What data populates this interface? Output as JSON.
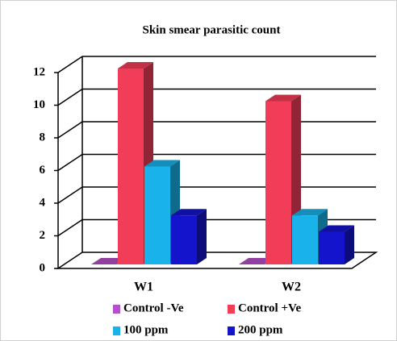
{
  "chart_data": {
    "type": "bar3d",
    "title": "Skin smear parasitic count",
    "categories": [
      "W1",
      "W2"
    ],
    "series": [
      {
        "name": "Control -Ve",
        "color": "#b550c8",
        "values": [
          0,
          0
        ]
      },
      {
        "name": "Control +Ve",
        "color": "#f23d58",
        "values": [
          12,
          10
        ]
      },
      {
        "name": "100 ppm",
        "color": "#19b2ea",
        "values": [
          6,
          3
        ]
      },
      {
        "name": "200 ppm",
        "color": "#1414cc",
        "values": [
          3,
          2
        ]
      }
    ],
    "ylim": [
      0,
      12
    ],
    "yticks": [
      0,
      2,
      4,
      6,
      8,
      10,
      12
    ],
    "grid": true
  }
}
